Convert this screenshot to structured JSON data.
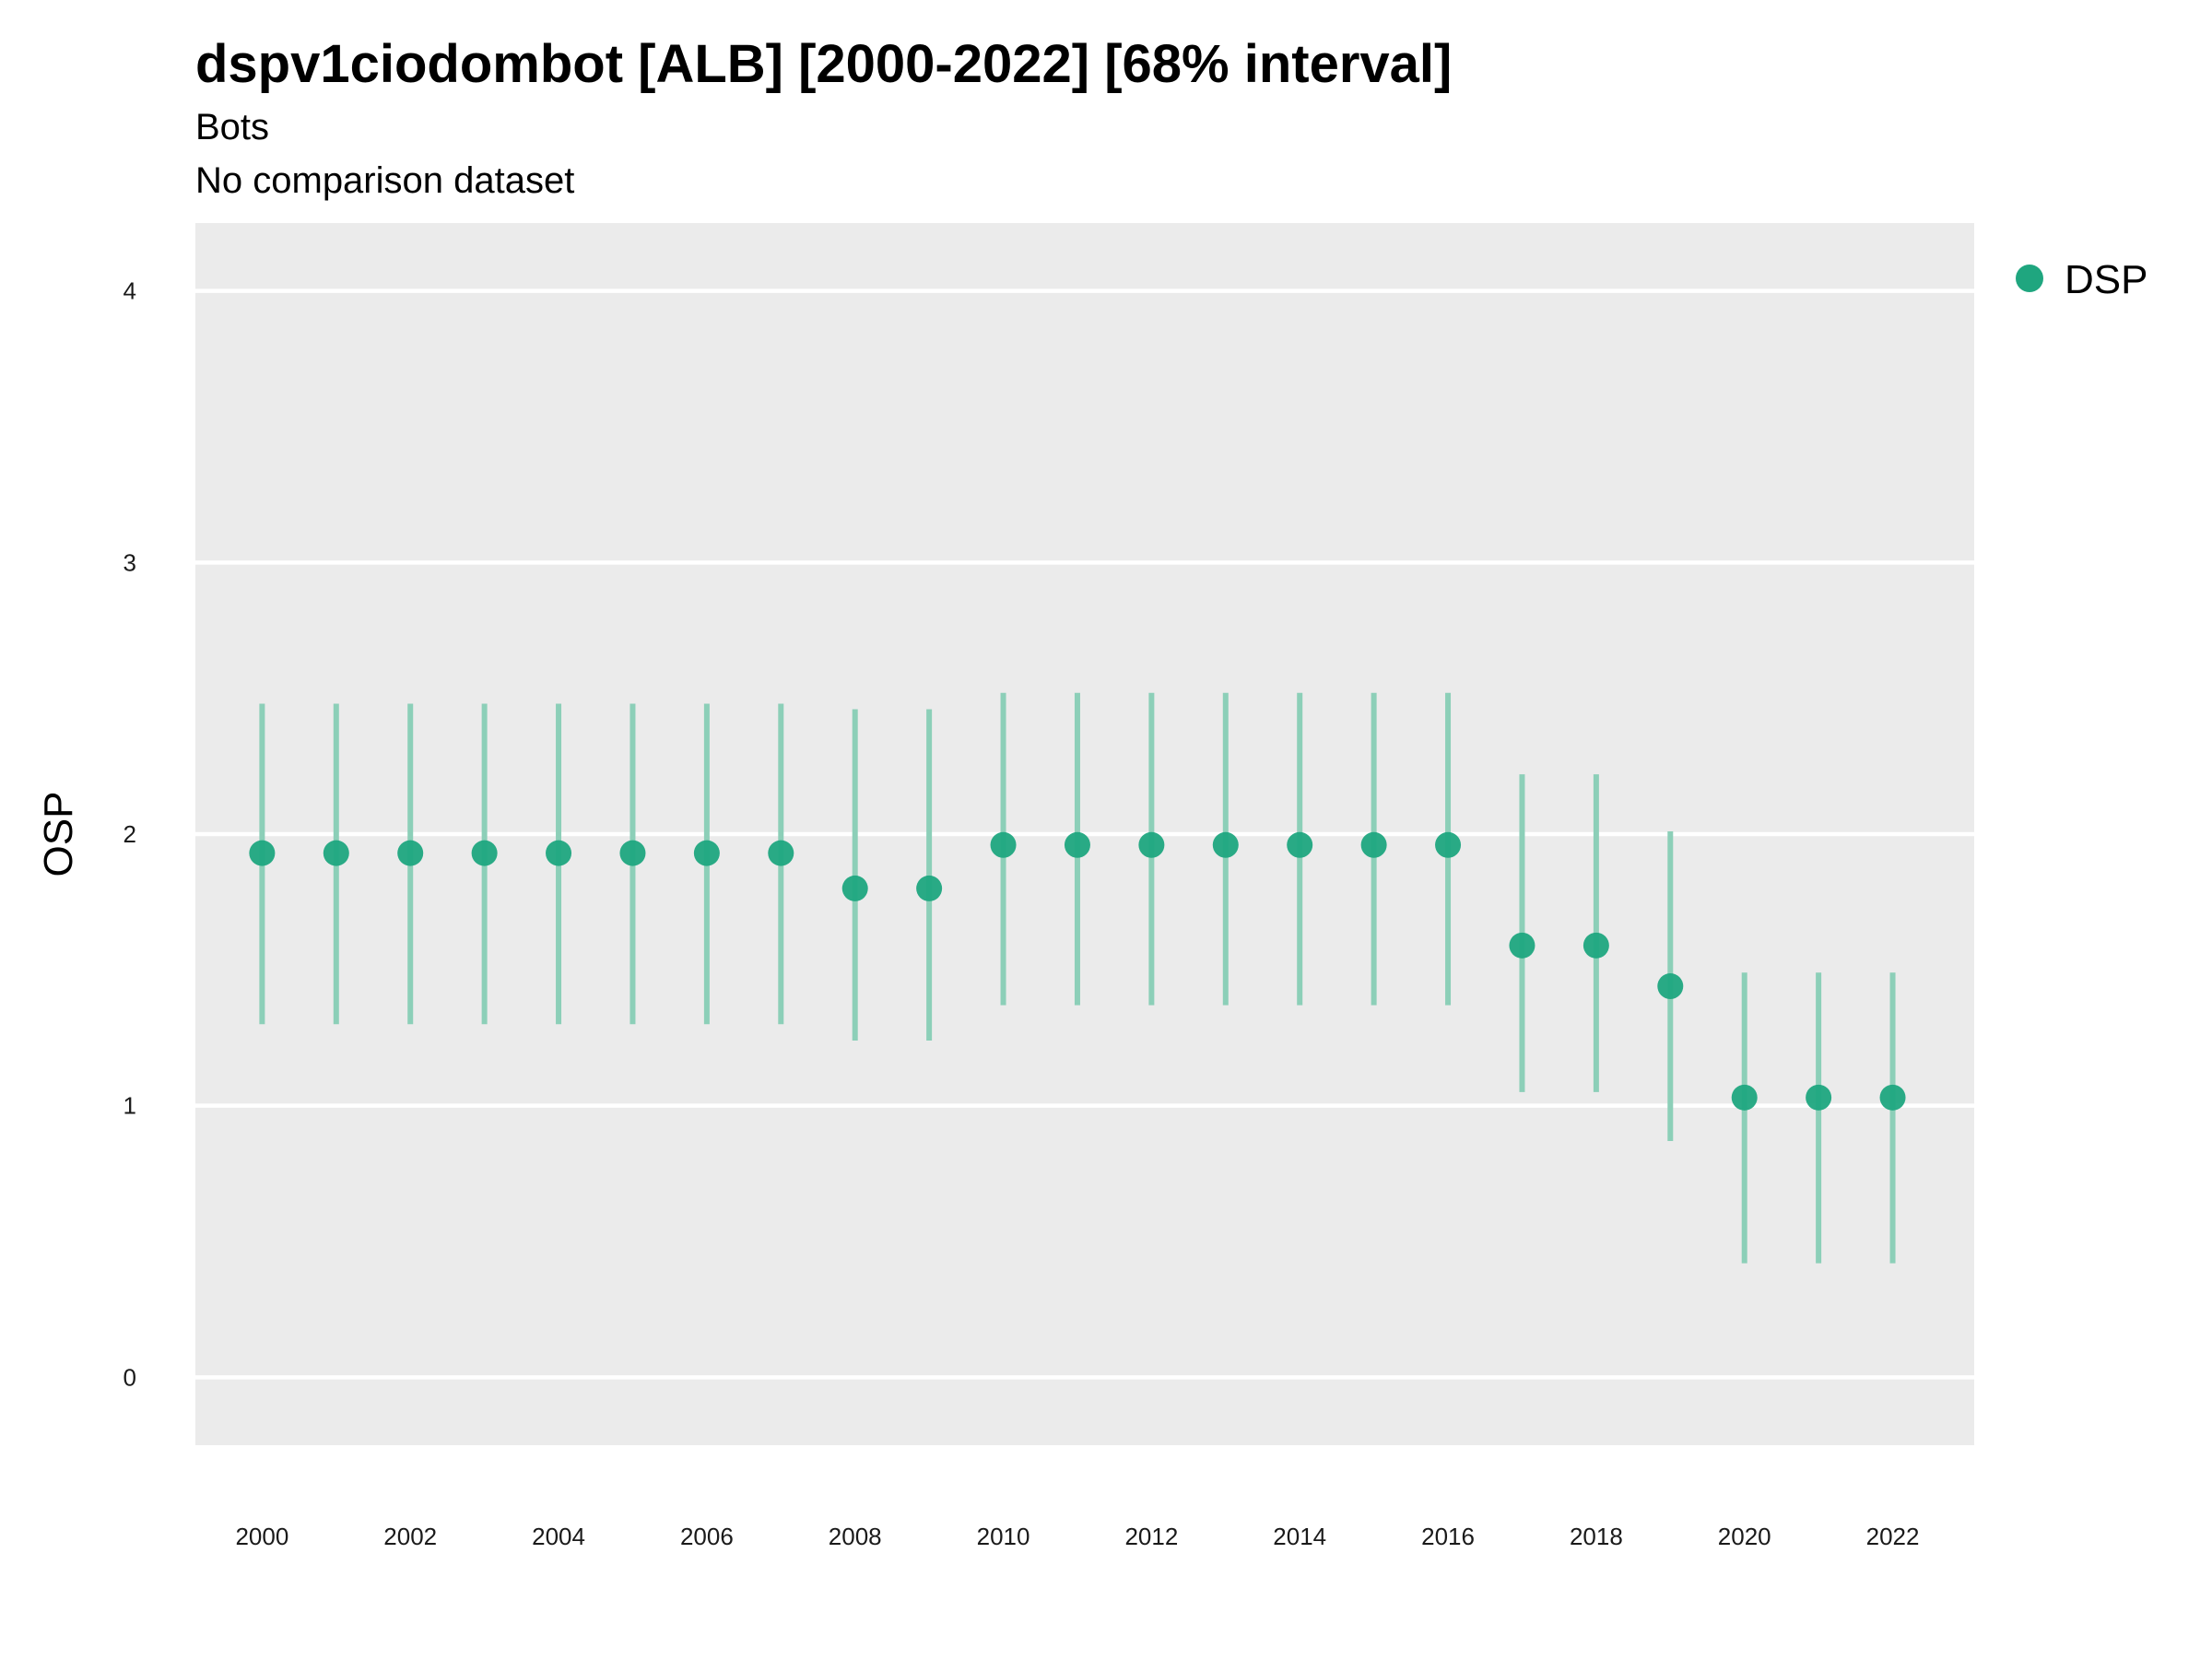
{
  "chart_data": {
    "type": "scatter",
    "title": "dspv1ciodombot [ALB] [2000-2022] [68% interval]",
    "subtitle": "Bots",
    "subtitle2": "No comparison dataset",
    "xlabel": "",
    "ylabel": "OSP",
    "ylim": [
      -0.25,
      4.25
    ],
    "xlim": [
      1999.1,
      2023.1
    ],
    "y_ticks": [
      "0",
      "1",
      "2",
      "3",
      "4"
    ],
    "x_ticks": [
      "2000",
      "2002",
      "2004",
      "2006",
      "2008",
      "2010",
      "2012",
      "2014",
      "2016",
      "2018",
      "2020",
      "2022"
    ],
    "grid": true,
    "legend_position": "right-top",
    "colors": {
      "point": "#1fa67f",
      "interval": "#8ccfb8",
      "panel": "#ebebeb",
      "grid": "#ffffff"
    },
    "series": [
      {
        "name": "DSP",
        "x": [
          2000,
          2001,
          2002,
          2003,
          2004,
          2005,
          2006,
          2007,
          2008,
          2009,
          2010,
          2011,
          2012,
          2013,
          2014,
          2015,
          2016,
          2017,
          2018,
          2019,
          2020,
          2021,
          2022
        ],
        "y": [
          1.93,
          1.93,
          1.93,
          1.93,
          1.93,
          1.93,
          1.93,
          1.93,
          1.8,
          1.8,
          1.96,
          1.96,
          1.96,
          1.96,
          1.96,
          1.96,
          1.96,
          1.59,
          1.59,
          1.44,
          1.03,
          1.03,
          1.03
        ],
        "lower": [
          1.3,
          1.3,
          1.3,
          1.3,
          1.3,
          1.3,
          1.3,
          1.3,
          1.24,
          1.24,
          1.37,
          1.37,
          1.37,
          1.37,
          1.37,
          1.37,
          1.37,
          1.05,
          1.05,
          0.87,
          0.42,
          0.42,
          0.42
        ],
        "upper": [
          2.48,
          2.48,
          2.48,
          2.48,
          2.48,
          2.48,
          2.48,
          2.48,
          2.46,
          2.46,
          2.52,
          2.52,
          2.52,
          2.52,
          2.52,
          2.52,
          2.52,
          2.22,
          2.22,
          2.01,
          1.49,
          1.49,
          1.49
        ]
      }
    ]
  }
}
